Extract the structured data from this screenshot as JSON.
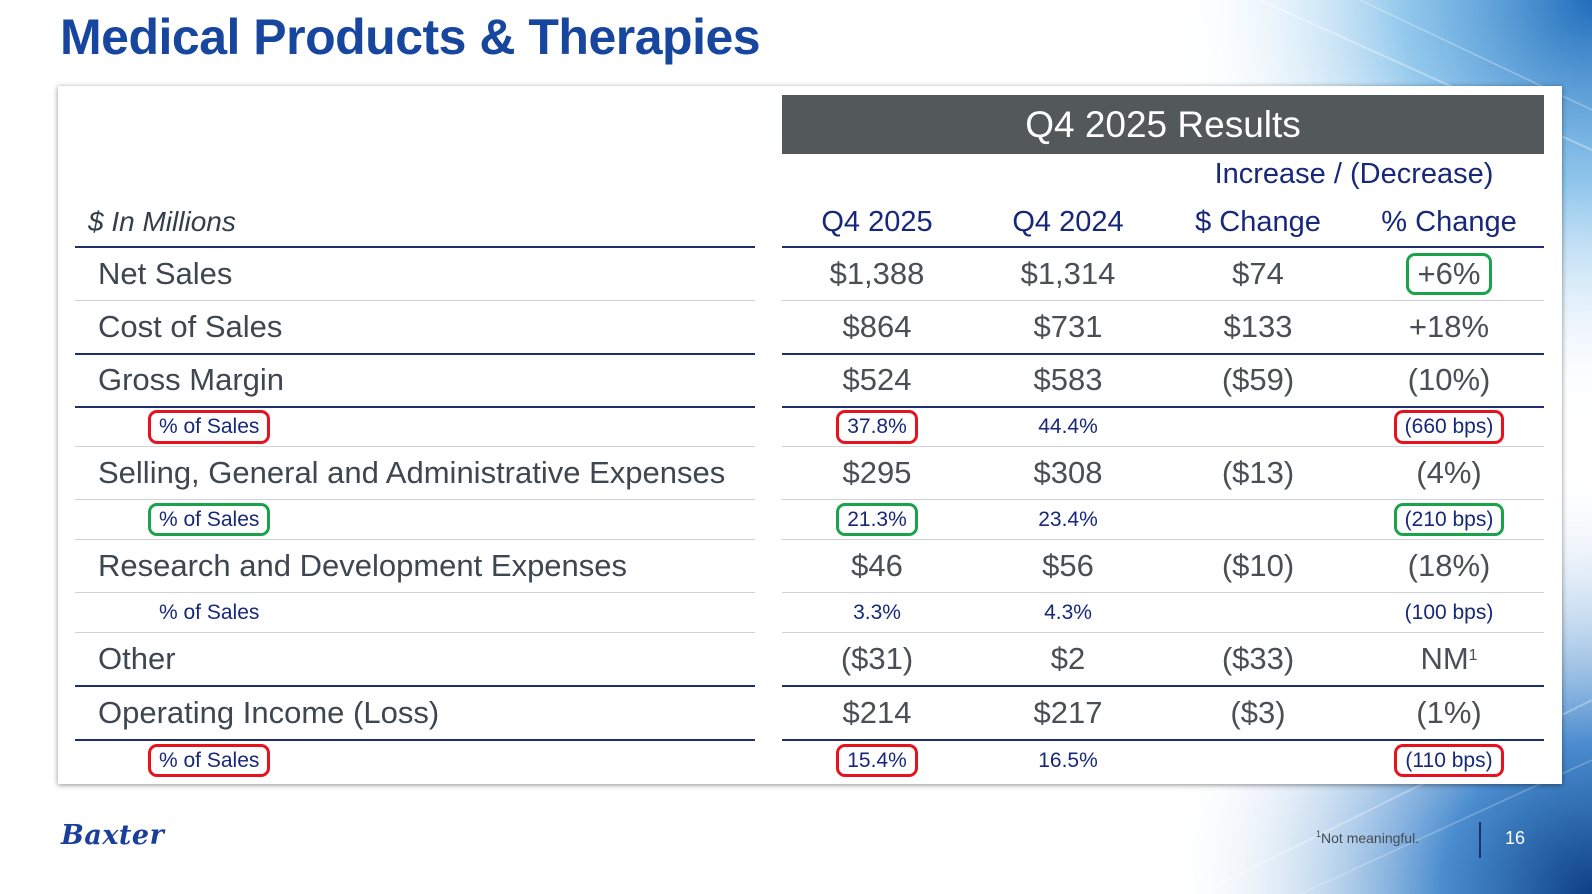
{
  "slide": {
    "title": "Medical Products & Therapies",
    "logo": "Baxter",
    "footnote": {
      "marker": "1",
      "text": "Not meaningful."
    },
    "page_number": "16",
    "colors": {
      "title": "#17469e",
      "header_bar": "#53585b",
      "navy_text": "#17287a",
      "highlight_red": "#e8121e",
      "highlight_green": "#1aa34a"
    }
  },
  "table": {
    "section_header": "Q4 2025 Results",
    "group_header": "Increase / (Decrease)",
    "units_label": "$ In Millions",
    "columns": [
      "Q4 2025",
      "Q4 2024",
      "$ Change",
      "% Change"
    ],
    "rows": [
      {
        "label": "Net Sales",
        "q4_2025": "$1,388",
        "q4_2024": "$1,314",
        "dollar_change": "$74",
        "pct_change": "+6%"
      },
      {
        "label": "Cost of Sales",
        "q4_2025": "$864",
        "q4_2024": "$731",
        "dollar_change": "$133",
        "pct_change": "+18%"
      },
      {
        "label": "Gross Margin",
        "q4_2025": "$524",
        "q4_2024": "$583",
        "dollar_change": "($59)",
        "pct_change": "(10%)"
      },
      {
        "label": "% of Sales",
        "q4_2025": "37.8%",
        "q4_2024": "44.4%",
        "dollar_change": "",
        "pct_change": "(660 bps)"
      },
      {
        "label": "Selling, General and Administrative Expenses",
        "q4_2025": "$295",
        "q4_2024": "$308",
        "dollar_change": "($13)",
        "pct_change": "(4%)"
      },
      {
        "label": "% of Sales",
        "q4_2025": "21.3%",
        "q4_2024": "23.4%",
        "dollar_change": "",
        "pct_change": "(210 bps)"
      },
      {
        "label": "Research and Development Expenses",
        "q4_2025": "$46",
        "q4_2024": "$56",
        "dollar_change": "($10)",
        "pct_change": "(18%)"
      },
      {
        "label": "% of Sales",
        "q4_2025": "3.3%",
        "q4_2024": "4.3%",
        "dollar_change": "",
        "pct_change": "(100 bps)"
      },
      {
        "label": "Other",
        "q4_2025": "($31)",
        "q4_2024": "$2",
        "dollar_change": "($33)",
        "pct_change": "NM",
        "pct_change_sup": "1"
      },
      {
        "label": "Operating Income (Loss)",
        "q4_2025": "$214",
        "q4_2024": "$217",
        "dollar_change": "($3)",
        "pct_change": "(1%)"
      },
      {
        "label": "% of Sales",
        "q4_2025": "15.4%",
        "q4_2024": "16.5%",
        "dollar_change": "",
        "pct_change": "(110 bps)"
      }
    ]
  }
}
